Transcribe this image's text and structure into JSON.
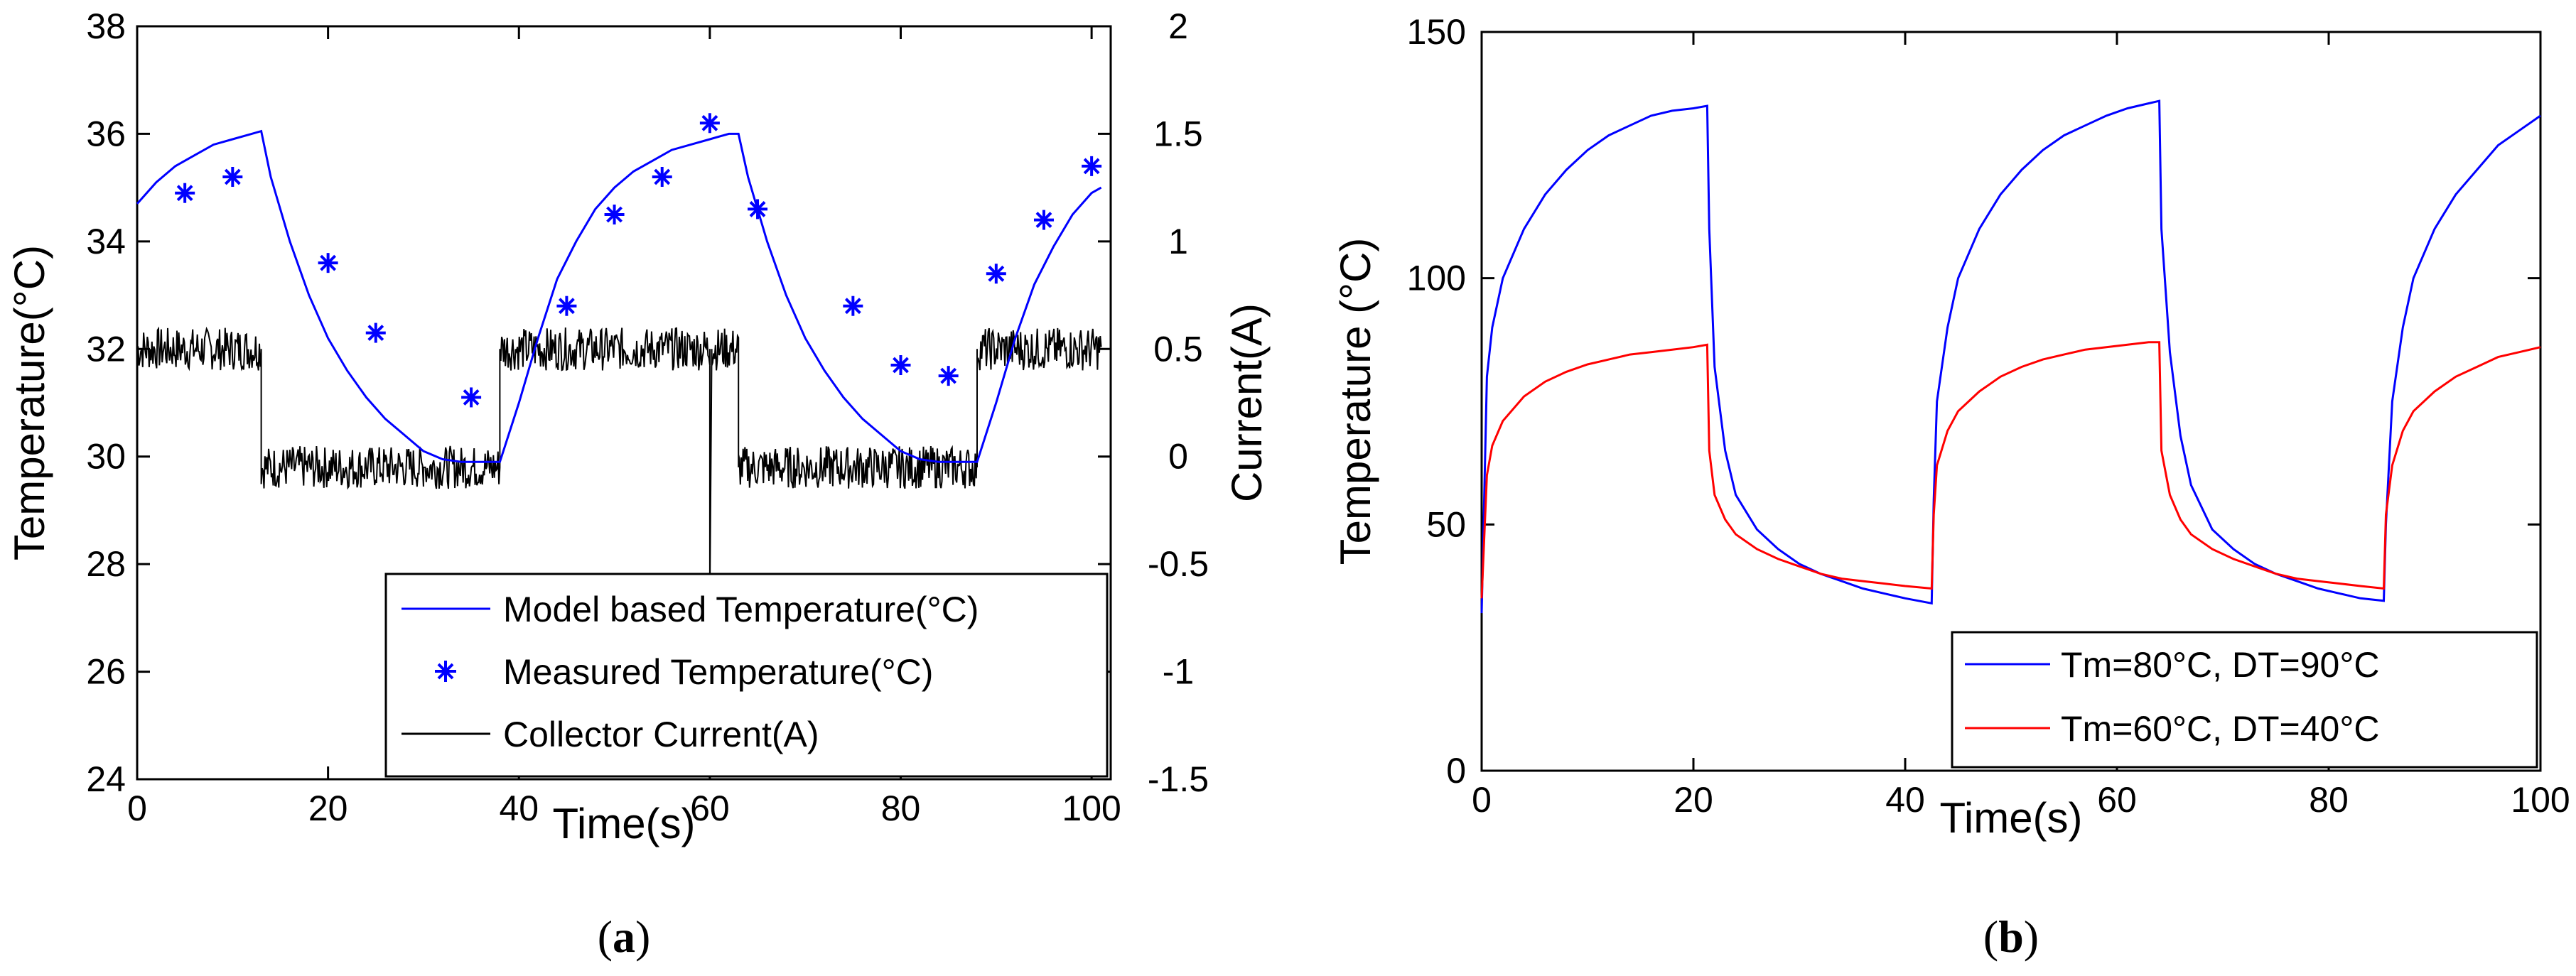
{
  "chart_data": [
    {
      "type": "line",
      "caption": {
        "open": "(",
        "letter": "a",
        "close": ")"
      },
      "xlabel": "Time(s)",
      "ylabel": "Temperature(°C)",
      "y2label": "Current(A)",
      "xlim": [
        0,
        102
      ],
      "ylim": [
        24,
        38
      ],
      "y2lim": [
        -1.5,
        2
      ],
      "xticks": [
        "0",
        "20",
        "40",
        "60",
        "80",
        "100"
      ],
      "yticks": [
        "24",
        "26",
        "28",
        "30",
        "32",
        "34",
        "36",
        "38"
      ],
      "y2ticks": [
        "-1.5",
        "-1",
        "-0.5",
        "0",
        "0.5",
        "1",
        "1.5",
        "2"
      ],
      "series": [
        {
          "name": "Model based Temperature(°C)",
          "axis": "left",
          "color": "#0000ff",
          "style": "line",
          "x": [
            0,
            2,
            4,
            6,
            8,
            10,
            12,
            13,
            14,
            16,
            18,
            20,
            22,
            24,
            26,
            28,
            30,
            32,
            34,
            36,
            38,
            40,
            42,
            44,
            46,
            48,
            50,
            52,
            54,
            56,
            58,
            60,
            62,
            63,
            64,
            66,
            68,
            70,
            72,
            74,
            76,
            78,
            80,
            82,
            84,
            86,
            88,
            90,
            92,
            94,
            96,
            98,
            100,
            101
          ],
          "y": [
            34.7,
            35.1,
            35.4,
            35.6,
            35.8,
            35.9,
            36.0,
            36.05,
            35.2,
            34.0,
            33.0,
            32.2,
            31.6,
            31.1,
            30.7,
            30.4,
            30.1,
            29.95,
            29.9,
            29.9,
            29.9,
            31.0,
            32.2,
            33.3,
            34.0,
            34.6,
            35.0,
            35.3,
            35.5,
            35.7,
            35.8,
            35.9,
            36.0,
            36.0,
            35.2,
            34.0,
            33.0,
            32.2,
            31.6,
            31.1,
            30.7,
            30.4,
            30.1,
            29.95,
            29.9,
            29.9,
            29.9,
            31.0,
            32.2,
            33.2,
            33.9,
            34.5,
            34.9,
            35.0
          ]
        },
        {
          "name": "Measured Temperature(°C)",
          "axis": "left",
          "color": "#0000ff",
          "style": "marker",
          "marker": "*",
          "x": [
            5,
            10,
            20,
            25,
            35,
            45,
            50,
            55,
            60,
            65,
            75,
            80,
            85,
            90,
            95,
            100
          ],
          "y": [
            34.9,
            35.2,
            33.6,
            32.3,
            31.1,
            32.8,
            34.5,
            35.2,
            36.2,
            34.6,
            32.8,
            31.7,
            31.5,
            33.4,
            34.4,
            35.4
          ]
        },
        {
          "name": "Collector Current(A)",
          "axis": "right",
          "color": "#000000",
          "style": "noisy-step",
          "noise_amplitude": 0.1,
          "x": [
            0,
            13,
            13,
            30,
            30.2,
            38,
            38,
            60,
            60,
            60.2,
            63,
            63,
            88,
            88,
            101
          ],
          "y": [
            0.5,
            0.5,
            -0.05,
            -0.05,
            -0.05,
            -0.05,
            0.5,
            0.5,
            -0.65,
            0.5,
            0.5,
            -0.05,
            -0.05,
            0.5,
            0.5
          ]
        }
      ],
      "legend_location": "lower-right"
    },
    {
      "type": "line",
      "caption": {
        "open": "(",
        "letter": "b",
        "close": ")"
      },
      "xlabel": "Time(s)",
      "ylabel": "Temperature (°C)",
      "xlim": [
        0,
        100
      ],
      "ylim": [
        0,
        150
      ],
      "xticks": [
        "0",
        "20",
        "40",
        "60",
        "80",
        "100"
      ],
      "yticks": [
        "0",
        "50",
        "100",
        "150"
      ],
      "series": [
        {
          "name": "Tm=80°C, DT=90°C",
          "color": "#0000ff",
          "x": [
            0,
            0.5,
            1,
            2,
            4,
            6,
            8,
            10,
            12,
            14,
            16,
            18,
            20,
            21.3,
            21.5,
            22,
            23,
            24,
            26,
            28,
            30,
            32,
            34,
            36,
            38,
            40,
            42.5,
            42.7,
            43,
            44,
            45,
            47,
            49,
            51,
            53,
            55,
            57,
            59,
            61,
            63,
            64,
            64.2,
            65,
            66,
            67,
            69,
            71,
            73,
            75,
            77,
            79,
            81,
            83,
            85.2,
            85.4,
            86,
            87,
            88,
            90,
            92,
            94,
            96,
            98,
            100
          ],
          "y": [
            32,
            80,
            90,
            100,
            110,
            117,
            122,
            126,
            129,
            131,
            133,
            134,
            134.5,
            135,
            110,
            82,
            65,
            56,
            49,
            45,
            42,
            40,
            38.5,
            37,
            36,
            35,
            34,
            55,
            75,
            90,
            100,
            110,
            117,
            122,
            126,
            129,
            131,
            133,
            134.5,
            135.5,
            136,
            110,
            85,
            68,
            58,
            49,
            45,
            42,
            40,
            38.5,
            37,
            36,
            35,
            34.5,
            50,
            75,
            90,
            100,
            110,
            117,
            122,
            127,
            130,
            133
          ]
        },
        {
          "name": "Tm=60°C, DT=40°C",
          "color": "#ff0000",
          "x": [
            0,
            0.5,
            1,
            2,
            4,
            6,
            8,
            10,
            12,
            14,
            16,
            18,
            20,
            21.3,
            21.5,
            22,
            23,
            24,
            26,
            28,
            30,
            32,
            34,
            36,
            38,
            40,
            42.5,
            42.7,
            43,
            44,
            45,
            47,
            49,
            51,
            53,
            55,
            57,
            59,
            61,
            63,
            64,
            64.2,
            65,
            66,
            67,
            69,
            71,
            73,
            75,
            77,
            79,
            81,
            83,
            85.2,
            85.4,
            86,
            87,
            88,
            90,
            92,
            94,
            96,
            98,
            100
          ],
          "y": [
            35,
            60,
            66,
            71,
            76,
            79,
            81,
            82.5,
            83.5,
            84.5,
            85,
            85.5,
            86,
            86.5,
            65,
            56,
            51,
            48,
            45,
            43,
            41.5,
            40,
            39,
            38.5,
            38,
            37.5,
            37,
            52,
            62,
            69,
            73,
            77,
            80,
            82,
            83.5,
            84.5,
            85.5,
            86,
            86.5,
            87,
            87,
            65,
            56,
            51,
            48,
            45,
            43,
            41.5,
            40,
            39,
            38.5,
            38,
            37.5,
            37,
            52,
            62,
            69,
            73,
            77,
            80,
            82,
            84,
            85,
            86
          ]
        }
      ],
      "legend_location": "lower-right"
    }
  ]
}
